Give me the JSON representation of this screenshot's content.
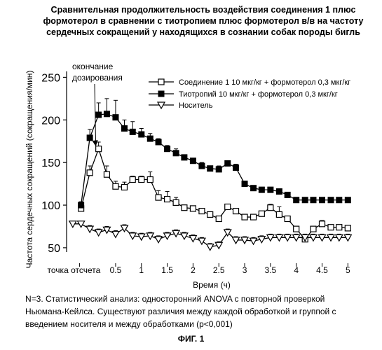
{
  "figure_label": "ФИГ. 1",
  "caption": {
    "lines": [
      "N=3. Статистический анализ: односторонний ANOVA с повторной проверкой",
      "Ньюмана-Кейлса. Существуют различия между каждой обработкой и группой с",
      "введением носителя и между обработками (p<0,001)"
    ]
  },
  "chart_data": {
    "type": "line",
    "title_lines": [
      "Сравнительная продолжительность воздействия соединения 1 плюс",
      "формотерол в сравнении с тиотропием плюс формотерол в/в на частоту",
      "сердечных сокращений у находящихся в сознании собак породы бигль"
    ],
    "xlabel": "Время (ч)",
    "ylabel": "Частота сердечных сокращений (сокращения/мин)",
    "x_tick_labels": [
      "точка отсчета",
      "0.5",
      "1",
      "1.5",
      "2",
      "2.5",
      "3",
      "3.5",
      "4",
      "4.5",
      "5"
    ],
    "x_tick_values": [
      0.5,
      1,
      1.5,
      2,
      2.5,
      3,
      3.5,
      4,
      4.5,
      5
    ],
    "xlim": [
      -0.45,
      5.05
    ],
    "ylim": [
      45,
      252
    ],
    "y_ticks": [
      50,
      100,
      150,
      200,
      250
    ],
    "annotation": {
      "lines": [
        "окончание",
        "дозирования"
      ],
      "x": 0.17,
      "y": 164
    },
    "x": [
      -0.33,
      -0.17,
      0,
      0.17,
      0.33,
      0.5,
      0.67,
      0.83,
      1.0,
      1.17,
      1.33,
      1.5,
      1.67,
      1.83,
      2.0,
      2.17,
      2.33,
      2.5,
      2.67,
      2.83,
      3.0,
      3.17,
      3.33,
      3.5,
      3.67,
      3.83,
      4.0,
      4.17,
      4.33,
      4.5,
      4.67,
      4.83,
      5.0
    ],
    "series": [
      {
        "name": "Соединение 1  10 мкг/кг + формотерол 0,3 мкг/кг",
        "marker": "square-open",
        "x_values": [
          -0.17,
          0.0,
          0.17,
          0.33,
          0.5,
          0.67,
          0.83,
          1.0,
          1.17,
          1.33,
          1.5,
          1.67,
          1.83,
          2.0,
          2.17,
          2.33,
          2.5,
          2.67,
          2.83,
          3.0,
          3.17,
          3.33,
          3.5,
          3.67,
          3.83,
          4.0,
          4.17,
          4.33,
          4.5,
          4.67,
          4.83,
          5.0
        ],
        "values": [
          96,
          138,
          166,
          136,
          122,
          121,
          130,
          130,
          130,
          109,
          107,
          103,
          97,
          96,
          93,
          89,
          84,
          98,
          93,
          86,
          86,
          90,
          97,
          89,
          84,
          72,
          60,
          72,
          78,
          74,
          74,
          73
        ],
        "error": [
          3,
          8,
          8,
          10,
          6,
          6,
          4,
          4,
          9,
          8,
          9,
          6,
          3,
          3,
          3,
          3,
          3,
          3,
          3,
          3,
          3,
          3,
          4,
          9,
          3,
          3,
          3,
          3,
          4,
          3,
          3,
          3
        ]
      },
      {
        "name": "Тиотропий 10 мкг/кг + формотерол 0,3 мкг/кг",
        "marker": "square-filled",
        "x_values": [
          -0.17,
          0.0,
          0.17,
          0.33,
          0.5,
          0.67,
          0.83,
          1.0,
          1.17,
          1.33,
          1.5,
          1.67,
          1.83,
          2.0,
          2.17,
          2.33,
          2.5,
          2.67,
          2.83,
          3.0,
          3.17,
          3.33,
          3.5,
          3.67,
          3.83,
          4.0,
          4.17,
          4.33,
          4.5,
          4.67,
          4.83,
          5.0
        ],
        "values": [
          100,
          179,
          206,
          207,
          203,
          190,
          186,
          183,
          178,
          174,
          166,
          161,
          156,
          152,
          146,
          143,
          142,
          149,
          144,
          125,
          120,
          118,
          118,
          116,
          112,
          106,
          106,
          106,
          106,
          106,
          106,
          106
        ],
        "error": [
          4,
          10,
          14,
          18,
          20,
          10,
          12,
          7,
          6,
          4,
          4,
          5,
          3,
          3,
          4,
          3,
          4,
          3,
          4,
          3,
          3,
          3,
          3,
          3,
          3,
          3,
          3,
          3,
          3,
          3,
          3,
          3
        ]
      },
      {
        "name": "Носитель",
        "marker": "triangle-open",
        "x_values": [
          -0.33,
          -0.17,
          0.0,
          0.17,
          0.33,
          0.5,
          0.67,
          0.83,
          1.0,
          1.17,
          1.33,
          1.5,
          1.67,
          1.83,
          2.0,
          2.17,
          2.33,
          2.5,
          2.67,
          2.83,
          3.0,
          3.17,
          3.33,
          3.5,
          3.67,
          3.83,
          4.0,
          4.17,
          4.33,
          4.5,
          4.67,
          4.83,
          5.0
        ],
        "values": [
          78,
          78,
          72,
          68,
          71,
          66,
          73,
          64,
          63,
          64,
          60,
          64,
          67,
          64,
          61,
          58,
          51,
          53,
          68,
          59,
          59,
          58,
          60,
          62,
          62,
          62,
          62,
          62,
          62,
          62,
          62,
          62,
          62
        ],
        "error": [
          3,
          3,
          4,
          4,
          4,
          4,
          4,
          4,
          4,
          4,
          4,
          4,
          4,
          4,
          4,
          4,
          4,
          4,
          4,
          4,
          4,
          4,
          4,
          4,
          4,
          4,
          4,
          4,
          4,
          4,
          4,
          4,
          4
        ]
      }
    ],
    "legend_placement": "top-right",
    "grid": false
  }
}
